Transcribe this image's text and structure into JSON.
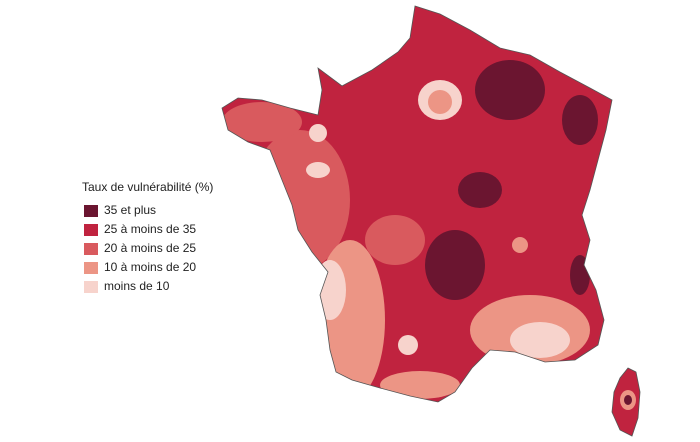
{
  "legend": {
    "title": "Taux de vulnérabilité (%)",
    "items": [
      {
        "label": "35 et plus",
        "color": "#6b1530"
      },
      {
        "label": "25 à moins de 35",
        "color": "#c0233f"
      },
      {
        "label": "20 à moins de 25",
        "color": "#d95a5e"
      },
      {
        "label": "10 à moins de 20",
        "color": "#ec9585"
      },
      {
        "label": "moins de 10",
        "color": "#f7d3cc"
      }
    ]
  }
}
